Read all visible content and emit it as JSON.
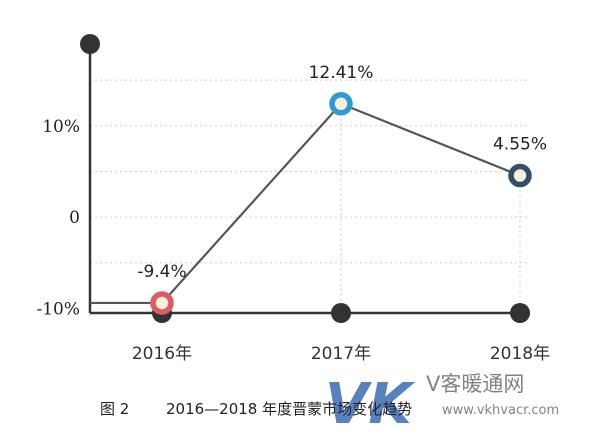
{
  "chart_data": {
    "type": "line",
    "title": "",
    "xlabel": "",
    "ylabel": "",
    "categories": [
      "2016年",
      "2017年",
      "2018年"
    ],
    "series": [
      {
        "values": [
          -9.4,
          12.41,
          4.55
        ],
        "value_labels": [
          "-9.4%",
          "12.41%",
          "4.55%"
        ]
      }
    ],
    "yticks": [
      {
        "value": 10,
        "label": "10%"
      },
      {
        "value": 0,
        "label": "0"
      },
      {
        "value": -10,
        "label": "-10%"
      }
    ],
    "ylim": [
      -10.5,
      16
    ],
    "grid": "dotted-horizontal",
    "legend": "none"
  },
  "caption": {
    "label": "图 2",
    "text": "2016—2018 年度晋蒙市场变化趋势"
  },
  "watermark": {
    "logo": "VK",
    "name": "V客暖通网",
    "url": "www.vkhvacr.com"
  },
  "colors": {
    "axis": "#333333",
    "line": "#555555",
    "grid": "#cfcfcf",
    "axis_dot": "#333333",
    "point_rings": [
      "#e05a63",
      "#2e9bd6",
      "#2f4f6b"
    ],
    "point_fill": "#f4f0dc"
  }
}
